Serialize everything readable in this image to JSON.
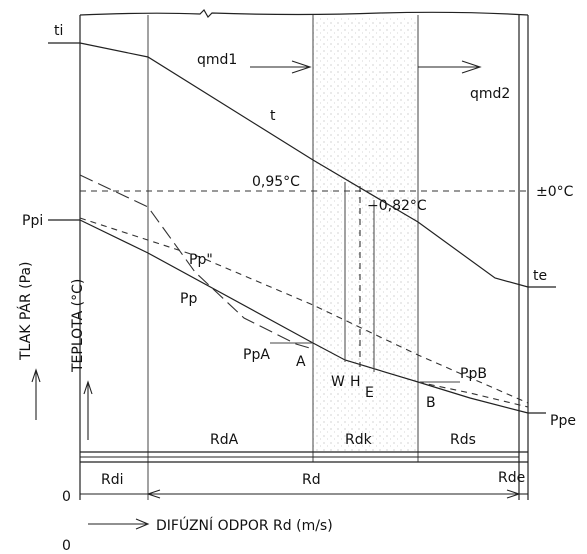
{
  "labels": {
    "ti": "ti",
    "te": "te",
    "qmd1": "qmd1",
    "qmd2": "qmd2",
    "t": "t",
    "temp1": "0,95°C",
    "temp2": "−0,82°C",
    "zero": "±0°C",
    "ppi": "Ppi",
    "pps": "Pp\"",
    "pp": "Pp",
    "ppa": "PpA",
    "a": "A",
    "w": "W",
    "h": "H",
    "e": "E",
    "b": "B",
    "ppb": "PpB",
    "ppe": "Ppe",
    "y1": "TLAK PÁR (Pa)",
    "y2": "TEPLOTA (°C)",
    "rda": "RdA",
    "rdk": "Rdk",
    "rds": "Rds",
    "rdi": "Rdi",
    "rd": "Rd",
    "rde": "Rde",
    "zero_y": "0",
    "zero_x": "0",
    "xaxis": "DIFÚZNÍ ODPOR Rd (m/s)"
  },
  "colors": {
    "line": "#222222",
    "hatch": "#bbbbbb"
  }
}
